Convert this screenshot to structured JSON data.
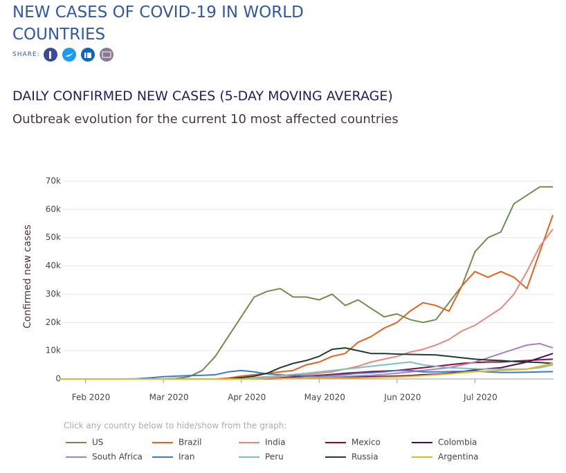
{
  "header": {
    "title": "NEW CASES OF COVID-19 IN WORLD COUNTRIES",
    "share_label": "SHARE:"
  },
  "chart_data": {
    "type": "line",
    "title": "DAILY CONFIRMED NEW CASES (5-DAY MOVING AVERAGE)",
    "subtitle": "Outbreak evolution for the current 10 most affected countries",
    "y_label": "Confirmed new cases",
    "legend_hint": "Click any country below to hide/show from the graph:",
    "categories": [
      null,
      null,
      "Feb 2020",
      null,
      null,
      null,
      null,
      null,
      "Mar 2020",
      null,
      null,
      null,
      null,
      null,
      "Apr 2020",
      null,
      null,
      null,
      null,
      null,
      "May 2020",
      null,
      null,
      null,
      null,
      null,
      "Jun 2020",
      null,
      null,
      null,
      null,
      null,
      "Jul 2020",
      null,
      null,
      null,
      null,
      null,
      null
    ],
    "ylim": [
      0,
      70000
    ],
    "yticks": [
      0,
      {
        "value": 10000,
        "label": "10k"
      },
      {
        "value": 20000,
        "label": "20k"
      },
      {
        "value": 30000,
        "label": "30k"
      },
      {
        "value": 40000,
        "label": "40k"
      },
      {
        "value": 50000,
        "label": "50k"
      },
      {
        "value": 60000,
        "label": "60k"
      },
      {
        "value": 70000,
        "label": "70k"
      }
    ],
    "grid": true,
    "series": [
      {
        "name": "US",
        "color": "#6b8e4e",
        "values": [
          0,
          0,
          0,
          0,
          0,
          0,
          0,
          0,
          0,
          200,
          800,
          3000,
          8000,
          15000,
          22000,
          29000,
          31000,
          32000,
          29000,
          29000,
          28000,
          30000,
          26000,
          28000,
          25000,
          22000,
          23000,
          21000,
          20000,
          21000,
          27000,
          33000,
          45000,
          50000,
          52000,
          62000,
          65000,
          68000,
          68000
        ]
      },
      {
        "name": "Brazil",
        "color": "#e8601c",
        "values": [
          0,
          0,
          0,
          0,
          0,
          0,
          0,
          0,
          0,
          0,
          0,
          0,
          0,
          300,
          1000,
          1500,
          2000,
          2500,
          3000,
          5000,
          6000,
          8000,
          9000,
          13000,
          15000,
          18000,
          20000,
          24000,
          27000,
          26000,
          24000,
          33000,
          38000,
          36000,
          38000,
          36000,
          32000,
          45000,
          58000
        ]
      },
      {
        "name": "India",
        "color": "#e8877f",
        "values": [
          0,
          0,
          0,
          0,
          0,
          0,
          0,
          0,
          0,
          0,
          0,
          0,
          0,
          0,
          300,
          500,
          800,
          1000,
          1300,
          1500,
          2000,
          2500,
          3500,
          4500,
          6000,
          7000,
          8000,
          9500,
          10500,
          12000,
          14000,
          17000,
          19000,
          22000,
          25000,
          30000,
          38000,
          47000,
          53000
        ]
      },
      {
        "name": "Mexico",
        "color": "#8b0a3a",
        "values": [
          0,
          0,
          0,
          0,
          0,
          0,
          0,
          0,
          0,
          0,
          0,
          0,
          0,
          0,
          0,
          0,
          200,
          400,
          700,
          1000,
          1300,
          1600,
          2000,
          2300,
          2600,
          2800,
          3000,
          3500,
          4000,
          4500,
          5000,
          5500,
          5800,
          6000,
          6000,
          6300,
          6500,
          6800,
          7000
        ]
      },
      {
        "name": "Colombia",
        "color": "#4b0a5c",
        "values": [
          0,
          0,
          0,
          0,
          0,
          0,
          0,
          0,
          0,
          0,
          0,
          0,
          0,
          0,
          0,
          0,
          0,
          100,
          200,
          300,
          400,
          500,
          600,
          700,
          800,
          900,
          1000,
          1200,
          1500,
          1700,
          2000,
          2600,
          3200,
          3600,
          4000,
          5000,
          6000,
          7500,
          9000
        ]
      },
      {
        "name": "South Africa",
        "color": "#a57fc0",
        "values": [
          0,
          0,
          0,
          0,
          0,
          0,
          0,
          0,
          0,
          0,
          0,
          0,
          0,
          0,
          0,
          0,
          100,
          200,
          300,
          400,
          500,
          700,
          900,
          1100,
          1300,
          1600,
          2000,
          2500,
          3000,
          3500,
          4000,
          5000,
          6000,
          7500,
          9000,
          10500,
          12000,
          12500,
          11000
        ]
      },
      {
        "name": "Iran",
        "color": "#3a78c9",
        "values": [
          0,
          0,
          0,
          0,
          0,
          0,
          100,
          400,
          800,
          1000,
          1200,
          1300,
          1500,
          2500,
          3000,
          2500,
          1800,
          1500,
          1200,
          1000,
          1000,
          1300,
          1600,
          2000,
          2200,
          2500,
          3000,
          3000,
          2500,
          2500,
          2600,
          2700,
          2800,
          2500,
          2300,
          2300,
          2400,
          2500,
          2600
        ]
      },
      {
        "name": "Peru",
        "color": "#7fbfbf",
        "values": [
          0,
          0,
          0,
          0,
          0,
          0,
          0,
          0,
          0,
          0,
          0,
          0,
          0,
          0,
          200,
          400,
          800,
          1200,
          1600,
          2000,
          2500,
          3000,
          3500,
          4000,
          4500,
          5000,
          5500,
          6000,
          5000,
          4500,
          4000,
          3800,
          3600,
          3500,
          3500,
          3500,
          3500,
          4000,
          5000
        ]
      },
      {
        "name": "Russia",
        "color": "#1f3d2f",
        "values": [
          0,
          0,
          0,
          0,
          0,
          0,
          0,
          0,
          0,
          0,
          0,
          0,
          0,
          0,
          500,
          1000,
          2000,
          4000,
          5500,
          6500,
          8000,
          10500,
          11000,
          10000,
          9000,
          9000,
          8800,
          8700,
          8600,
          8500,
          8000,
          7500,
          7000,
          6700,
          6500,
          6200,
          6000,
          5800,
          5500
        ]
      },
      {
        "name": "Argentina",
        "color": "#e8b520",
        "values": [
          0,
          0,
          0,
          0,
          0,
          0,
          0,
          0,
          0,
          0,
          0,
          0,
          0,
          0,
          0,
          0,
          100,
          100,
          150,
          200,
          250,
          300,
          350,
          400,
          500,
          600,
          700,
          900,
          1200,
          1500,
          1800,
          2200,
          2600,
          2800,
          3000,
          3200,
          3500,
          4500,
          5500
        ]
      }
    ]
  }
}
